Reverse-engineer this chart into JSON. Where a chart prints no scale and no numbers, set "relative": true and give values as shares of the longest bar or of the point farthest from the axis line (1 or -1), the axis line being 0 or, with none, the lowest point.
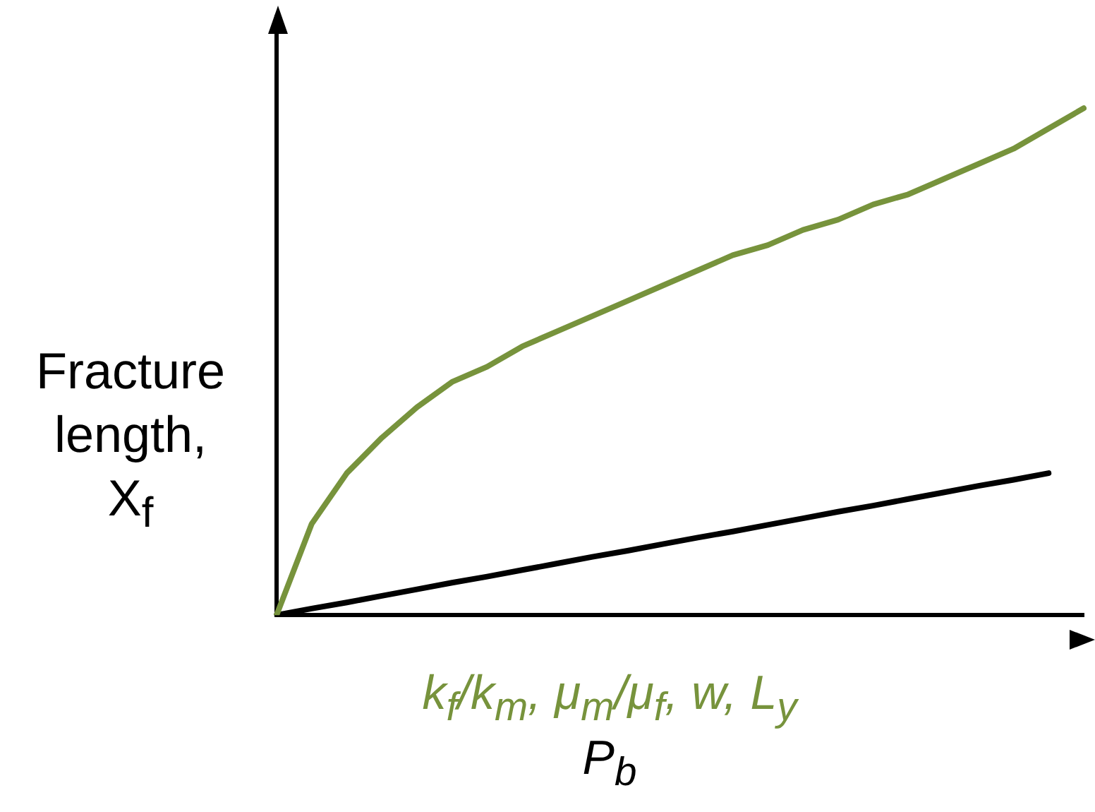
{
  "chart_data": {
    "type": "line",
    "relative": true,
    "xlabel": "P$_{b}$",
    "ylabel": "Fracture length, X$_{f}$",
    "legend": false,
    "grid": false,
    "marker": "none",
    "line_style": "solid",
    "categories": [
      null,
      null,
      null,
      null,
      null,
      null,
      null,
      null,
      null,
      null,
      null,
      null,
      null,
      null,
      null,
      null,
      null,
      null,
      null,
      null,
      null,
      null,
      null,
      null
    ],
    "series": [
      {
        "name": "k$_{f}$/k$_{m}$, μ$_{m}$/μ$_{f}$, w, L$_{y}$",
        "color": "#77933c",
        "values": [
          0,
          0.18,
          0.28,
          0.35,
          0.41,
          0.46,
          0.49,
          0.53,
          0.56,
          0.59,
          0.62,
          0.65,
          0.68,
          0.71,
          0.73,
          0.76,
          0.78,
          0.81,
          0.83,
          0.86,
          0.89,
          0.92,
          0.96,
          1
        ]
      },
      {
        "color": "#000000",
        "values": [
          0,
          0.013,
          0.025,
          0.038,
          0.051,
          0.064,
          0.076,
          0.089,
          0.102,
          0.115,
          0.127,
          0.14,
          0.153,
          0.165,
          0.178,
          0.191,
          0.204,
          0.216,
          0.229,
          0.242,
          0.255,
          0.267,
          0.28,
          null
        ]
      }
    ]
  }
}
